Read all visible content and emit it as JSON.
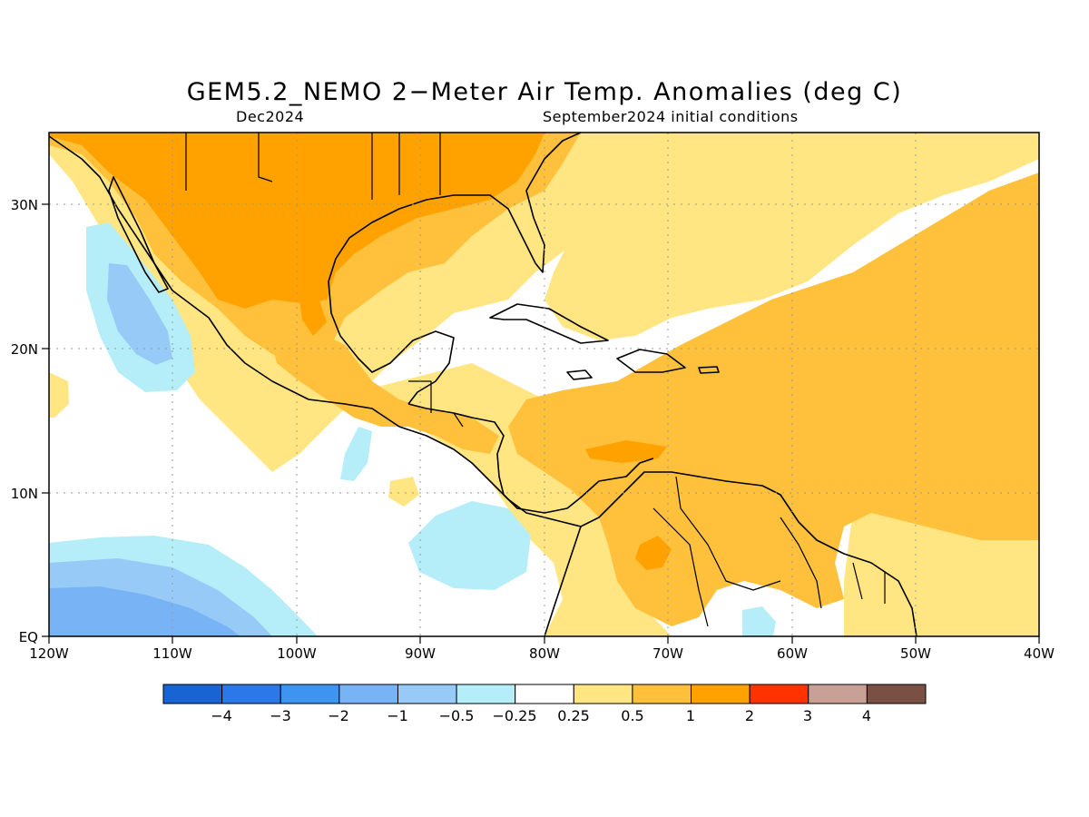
{
  "title": "GEM5.2_NEMO 2−Meter Air Temp. Anomalies (deg C)",
  "subtitle_left": "Dec2024",
  "subtitle_right": "September2024 initial conditions",
  "lat_labels": [
    "30N",
    "20N",
    "10N",
    "EQ"
  ],
  "lon_labels": [
    "120W",
    "110W",
    "100W",
    "90W",
    "80W",
    "70W",
    "60W",
    "50W",
    "40W"
  ],
  "colorbar": {
    "colors": [
      "#1864d2",
      "#2b78e8",
      "#3d94f1",
      "#78b4f5",
      "#98caf8",
      "#b5eef8",
      "#ffffff",
      "#ffe682",
      "#ffc03c",
      "#ffa200",
      "#ff3200",
      "#c8a096",
      "#7a5044"
    ],
    "labels": [
      "−4",
      "−3",
      "−2",
      "−1",
      "−0.5",
      "−0.25",
      "0.25",
      "0.5",
      "1",
      "2",
      "3",
      "4"
    ]
  },
  "colors": {
    "warm_light": "#ffe682",
    "warm_mid": "#ffc03c",
    "warm_strong": "#ffa200",
    "cool_light": "#b5eef8",
    "cool_mid": "#98caf8",
    "cool_strong": "#78b4f5"
  }
}
